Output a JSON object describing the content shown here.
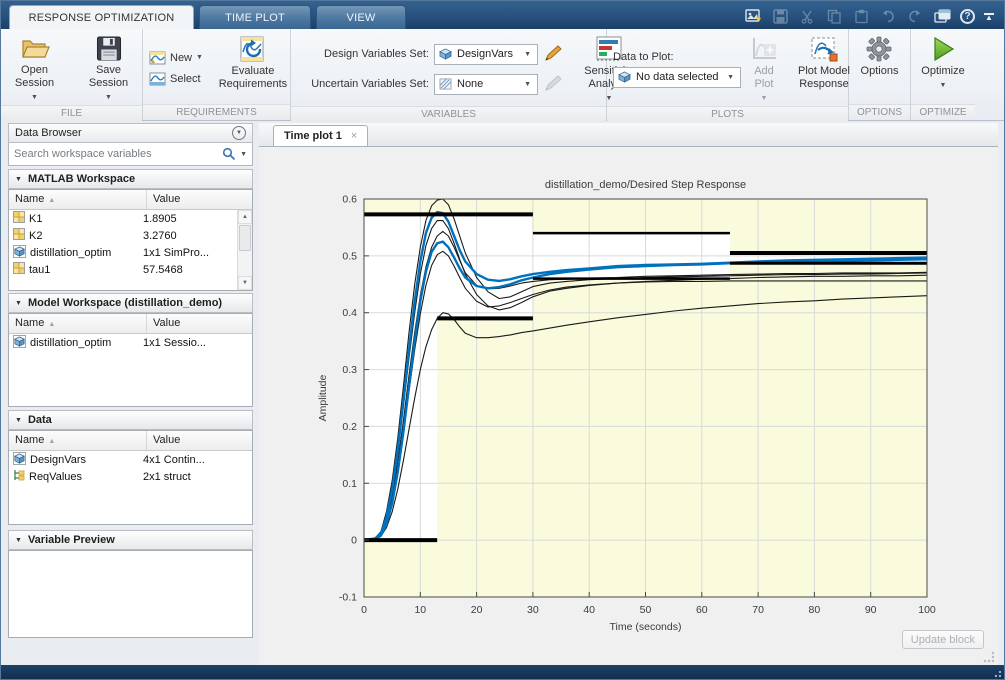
{
  "ribbon_tabs": [
    {
      "label": "RESPONSE OPTIMIZATION",
      "active": true
    },
    {
      "label": "TIME PLOT",
      "active": false
    },
    {
      "label": "VIEW",
      "active": false
    }
  ],
  "icons": {
    "dropdown": "▼",
    "collapse_section": "▼",
    "sort_ascending": "▲",
    "close": "×",
    "help": "?",
    "panel_menu": "▼",
    "scroll_up": "▲",
    "scroll_down": "▼"
  },
  "toolbar": {
    "sections": {
      "file": {
        "label": "FILE",
        "open_session": "Open Session",
        "save_session": "Save Session"
      },
      "requirements": {
        "label": "REQUIREMENTS",
        "new": "New",
        "select": "Select",
        "evaluate": "Evaluate Requirements"
      },
      "variables": {
        "label": "VARIABLES",
        "design_set_label": "Design Variables Set:",
        "design_set_value": "DesignVars",
        "uncertain_set_label": "Uncertain Variables Set:",
        "uncertain_set_value": "None",
        "sensitivity": "Sensitivity Analysis"
      },
      "plots": {
        "label": "PLOTS",
        "data_to_plot_label": "Data to Plot:",
        "data_to_plot_value": "No data selected",
        "add_plot": "Add Plot",
        "plot_model_response": "Plot Model Response"
      },
      "options": {
        "label": "OPTIONS",
        "options": "Options"
      },
      "optimize": {
        "label": "OPTIMIZE",
        "optimize": "Optimize"
      }
    }
  },
  "data_browser": {
    "title": "Data Browser",
    "search_placeholder": "Search workspace variables",
    "matlab_workspace": {
      "title": "MATLAB Workspace",
      "columns": [
        "Name",
        "Value"
      ],
      "rows": [
        {
          "icon": "matrix-icon",
          "name": "K1",
          "value": "1.8905"
        },
        {
          "icon": "matrix-icon",
          "name": "K2",
          "value": "3.2760"
        },
        {
          "icon": "object-icon",
          "name": "distillation_optim",
          "value": "1x1 SimPro..."
        },
        {
          "icon": "matrix-icon",
          "name": "tau1",
          "value": "57.5468"
        }
      ]
    },
    "model_workspace": {
      "title": "Model Workspace (distillation_demo)",
      "columns": [
        "Name",
        "Value"
      ],
      "rows": [
        {
          "icon": "object-icon",
          "name": "distillation_optim",
          "value": "1x1 Sessio..."
        }
      ]
    },
    "data": {
      "title": "Data",
      "columns": [
        "Name",
        "Value"
      ],
      "rows": [
        {
          "icon": "object-icon",
          "name": "DesignVars",
          "value": "4x1 Contin..."
        },
        {
          "icon": "struct-icon",
          "name": "ReqValues",
          "value": "2x1 struct"
        }
      ]
    },
    "variable_preview": {
      "title": "Variable Preview"
    }
  },
  "plot_panel": {
    "tab": "Time plot 1",
    "update_block": "Update block"
  },
  "chart_data": {
    "type": "line",
    "title": "distillation_demo/Desired Step Response",
    "xlabel": "Time (seconds)",
    "ylabel": "Amplitude",
    "xlim": [
      0,
      100
    ],
    "ylim": [
      -0.1,
      0.6
    ],
    "xticks": [
      0,
      10,
      20,
      30,
      40,
      50,
      60,
      70,
      80,
      90,
      100
    ],
    "yticks": [
      -0.1,
      0,
      0.1,
      0.2,
      0.3,
      0.4,
      0.5,
      0.6
    ],
    "grid": true,
    "legend": "none",
    "infeasible_color": "#FAFADC",
    "feasible_color": "#FFFFFF",
    "feasible_regions": [
      {
        "x": [
          0,
          13
        ],
        "y": [
          0,
          0.573
        ]
      },
      {
        "x": [
          13,
          30
        ],
        "y": [
          0.39,
          0.573
        ]
      },
      {
        "x": [
          30,
          65
        ],
        "y": [
          0.46,
          0.54
        ]
      },
      {
        "x": [
          65,
          100
        ],
        "y": [
          0.487,
          0.505
        ]
      }
    ],
    "constraint_bounds": {
      "color": "#000000",
      "upper_segments": [
        {
          "x1": 0,
          "x2": 30,
          "y": 0.573,
          "weight": 4
        },
        {
          "x1": 30,
          "x2": 65,
          "y": 0.54,
          "weight": 2.5
        },
        {
          "x1": 65,
          "x2": 100,
          "y": 0.505,
          "weight": 4
        }
      ],
      "lower_segments": [
        {
          "x1": 0,
          "x2": 13,
          "y": 0,
          "weight": 4
        },
        {
          "x1": 13,
          "x2": 30,
          "y": 0.39,
          "weight": 4
        },
        {
          "x1": 30,
          "x2": 65,
          "y": 0.46,
          "weight": 2.5
        },
        {
          "x1": 65,
          "x2": 100,
          "y": 0.487,
          "weight": 3
        }
      ]
    },
    "x": [
      0,
      2,
      3,
      4,
      5,
      6,
      7,
      8,
      9,
      10,
      11,
      12,
      13,
      14,
      15,
      16,
      17,
      18,
      20,
      22,
      24,
      26,
      28,
      30,
      33,
      36,
      40,
      45,
      50,
      55,
      60,
      65,
      70,
      75,
      80,
      85,
      90,
      95,
      100
    ],
    "series": [
      {
        "name": "iteration-response-1",
        "color": "#1a1a1a",
        "width": 1.1,
        "values": [
          0,
          0.004,
          0.015,
          0.05,
          0.105,
          0.18,
          0.27,
          0.365,
          0.45,
          0.515,
          0.562,
          0.588,
          0.598,
          0.6,
          0.59,
          0.565,
          0.535,
          0.505,
          0.462,
          0.437,
          0.425,
          0.428,
          0.437,
          0.446,
          0.452,
          0.455,
          0.458,
          0.46,
          0.462,
          0.463,
          0.464,
          0.465,
          0.466,
          0.467,
          0.467,
          0.468,
          0.468,
          0.469,
          0.47
        ]
      },
      {
        "name": "iteration-response-2",
        "color": "#1a1a1a",
        "width": 1.1,
        "values": [
          0,
          0.003,
          0.012,
          0.04,
          0.09,
          0.155,
          0.235,
          0.32,
          0.4,
          0.468,
          0.518,
          0.548,
          0.562,
          0.562,
          0.548,
          0.522,
          0.494,
          0.468,
          0.432,
          0.412,
          0.405,
          0.409,
          0.418,
          0.428,
          0.438,
          0.443,
          0.448,
          0.452,
          0.455,
          0.457,
          0.459,
          0.46,
          0.462,
          0.463,
          0.464,
          0.464,
          0.465,
          0.465,
          0.466
        ]
      },
      {
        "name": "iteration-response-3",
        "color": "#1a1a1a",
        "width": 1.1,
        "values": [
          0,
          0.002,
          0.01,
          0.034,
          0.078,
          0.138,
          0.21,
          0.29,
          0.365,
          0.43,
          0.48,
          0.515,
          0.535,
          0.543,
          0.535,
          0.515,
          0.492,
          0.47,
          0.448,
          0.442,
          0.443,
          0.447,
          0.452,
          0.455,
          0.458,
          0.459,
          0.461,
          0.462,
          0.464,
          0.465,
          0.466,
          0.467,
          0.468,
          0.469,
          0.469,
          0.47,
          0.47,
          0.47,
          0.471
        ]
      },
      {
        "name": "iteration-response-4",
        "color": "#1a1a1a",
        "width": 1.1,
        "values": [
          0,
          0.002,
          0.009,
          0.03,
          0.07,
          0.125,
          0.19,
          0.262,
          0.335,
          0.398,
          0.448,
          0.483,
          0.502,
          0.508,
          0.5,
          0.482,
          0.462,
          0.443,
          0.42,
          0.41,
          0.412,
          0.418,
          0.425,
          0.432,
          0.44,
          0.445,
          0.449,
          0.452,
          0.454,
          0.455,
          0.455,
          0.456,
          0.456,
          0.456,
          0.456,
          0.456,
          0.456,
          0.456,
          0.456
        ]
      },
      {
        "name": "iteration-response-5",
        "color": "#1a1a1a",
        "width": 1.1,
        "values": [
          0,
          0.002,
          0.007,
          0.022,
          0.05,
          0.09,
          0.14,
          0.195,
          0.25,
          0.3,
          0.34,
          0.37,
          0.39,
          0.4,
          0.398,
          0.388,
          0.375,
          0.364,
          0.356,
          0.356,
          0.358,
          0.361,
          0.365,
          0.368,
          0.373,
          0.378,
          0.384,
          0.391,
          0.397,
          0.403,
          0.408,
          0.412,
          0.416,
          0.419,
          0.421,
          0.424,
          0.426,
          0.428,
          0.43
        ]
      },
      {
        "name": "optimized-response-1",
        "color": "#0072BD",
        "width": 2.4,
        "values": [
          0,
          0.003,
          0.012,
          0.04,
          0.09,
          0.16,
          0.245,
          0.335,
          0.42,
          0.49,
          0.54,
          0.567,
          0.577,
          0.575,
          0.56,
          0.535,
          0.51,
          0.49,
          0.468,
          0.458,
          0.456,
          0.459,
          0.464,
          0.468,
          0.472,
          0.475,
          0.478,
          0.482,
          0.484,
          0.485,
          0.486,
          0.488,
          0.49,
          0.492,
          0.493,
          0.494,
          0.495,
          0.496,
          0.497
        ]
      },
      {
        "name": "optimized-response-2",
        "color": "#0072BD",
        "width": 2.4,
        "values": [
          0,
          0.002,
          0.008,
          0.028,
          0.065,
          0.12,
          0.19,
          0.27,
          0.35,
          0.42,
          0.472,
          0.507,
          0.522,
          0.525,
          0.515,
          0.497,
          0.478,
          0.462,
          0.447,
          0.443,
          0.445,
          0.45,
          0.457,
          0.462,
          0.468,
          0.472,
          0.476,
          0.48,
          0.482,
          0.484,
          0.485,
          0.487,
          0.488,
          0.489,
          0.49,
          0.491,
          0.492,
          0.493,
          0.494
        ]
      }
    ]
  }
}
